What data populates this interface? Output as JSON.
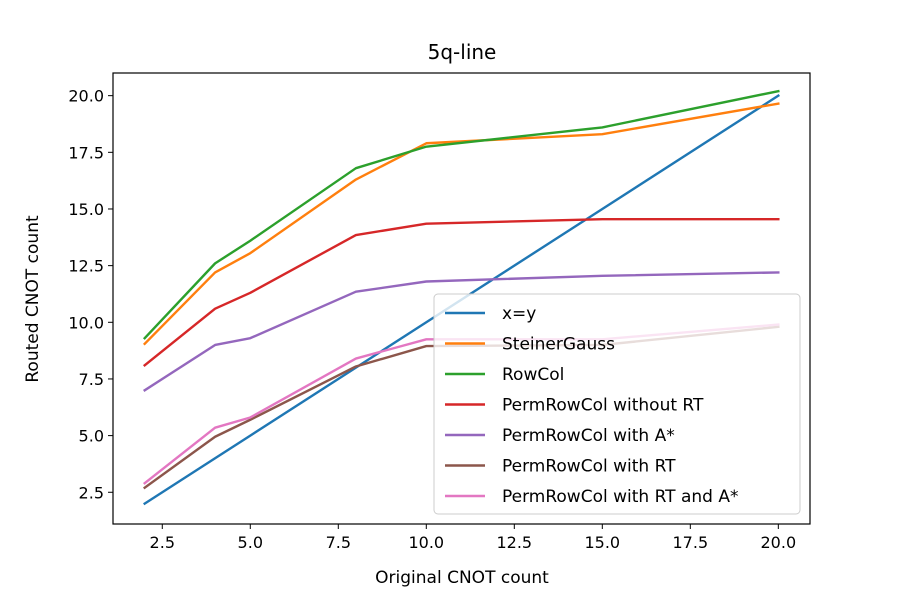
{
  "chart_data": {
    "type": "line",
    "title": "5q-line",
    "xlabel": "Original CNOT count",
    "ylabel": "Routed CNOT count",
    "xlim": [
      1.1,
      20.9
    ],
    "ylim": [
      1.1,
      21.0
    ],
    "xticks": [
      "2.5",
      "5.0",
      "7.5",
      "10.0",
      "12.5",
      "15.0",
      "17.5",
      "20.0"
    ],
    "xtick_values": [
      2.5,
      5.0,
      7.5,
      10.0,
      12.5,
      15.0,
      17.5,
      20.0
    ],
    "yticks": [
      "2.5",
      "5.0",
      "7.5",
      "10.0",
      "12.5",
      "15.0",
      "17.5",
      "20.0"
    ],
    "ytick_values": [
      2.5,
      5.0,
      7.5,
      10.0,
      12.5,
      15.0,
      17.5,
      20.0
    ],
    "grid": false,
    "legend_position": "lower-right",
    "x": [
      2,
      4,
      5,
      8,
      10,
      15,
      20
    ],
    "series": [
      {
        "name": "x=y",
        "color": "#1f77b4",
        "values": [
          2,
          4,
          5,
          8,
          10,
          15,
          20
        ]
      },
      {
        "name": "SteinerGauss",
        "color": "#ff7f0e",
        "values": [
          9.05,
          12.2,
          13.05,
          16.3,
          17.9,
          18.3,
          19.65
        ]
      },
      {
        "name": "RowCol",
        "color": "#2ca02c",
        "values": [
          9.3,
          12.6,
          13.6,
          16.8,
          17.75,
          18.6,
          20.2
        ]
      },
      {
        "name": "PermRowCol without RT",
        "color": "#d62728",
        "values": [
          8.1,
          10.6,
          11.3,
          13.85,
          14.35,
          14.55,
          14.55
        ]
      },
      {
        "name": "PermRowCol with A*",
        "color": "#9467bd",
        "values": [
          7.0,
          9.0,
          9.3,
          11.35,
          11.8,
          12.05,
          12.2
        ]
      },
      {
        "name": "PermRowCol with RT",
        "color": "#8c564b",
        "values": [
          2.7,
          4.95,
          5.7,
          8.05,
          8.95,
          9.0,
          9.8
        ]
      },
      {
        "name": "PermRowCol with RT and A*",
        "color": "#e377c2",
        "values": [
          2.9,
          5.35,
          5.8,
          8.4,
          9.25,
          9.25,
          9.9
        ]
      }
    ]
  }
}
